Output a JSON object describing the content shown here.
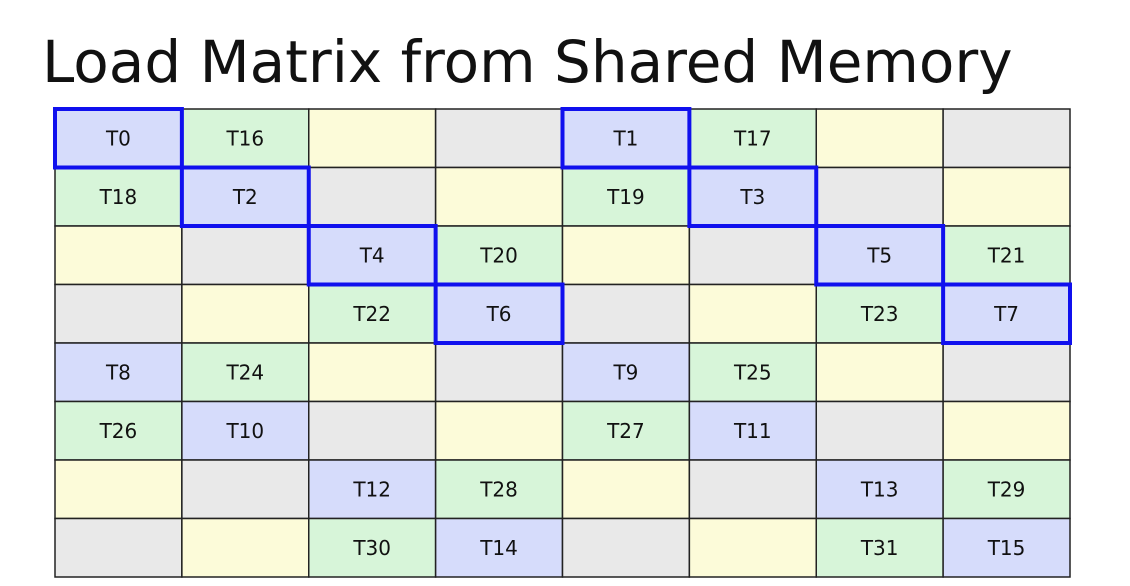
{
  "title": "Load Matrix from Shared Memory",
  "table": {
    "rows": [
      [
        "T0",
        "T16",
        null,
        null,
        "T1",
        "T17",
        null,
        null
      ],
      [
        "T18",
        "T2",
        null,
        null,
        "T19",
        "T3",
        null,
        null
      ],
      [
        null,
        null,
        "T4",
        "T20",
        null,
        null,
        "T5",
        "T21"
      ],
      [
        null,
        null,
        "T22",
        "T6",
        null,
        null,
        "T23",
        "T7"
      ],
      [
        "T8",
        "T24",
        null,
        null,
        "T9",
        "T25",
        null,
        null
      ],
      [
        "T26",
        "T10",
        null,
        null,
        "T27",
        "T11",
        null,
        null
      ],
      [
        null,
        null,
        "T12",
        "T28",
        null,
        null,
        "T13",
        "T29"
      ],
      [
        null,
        null,
        "T30",
        "T14",
        null,
        null,
        "T31",
        "T15"
      ]
    ]
  }
}
